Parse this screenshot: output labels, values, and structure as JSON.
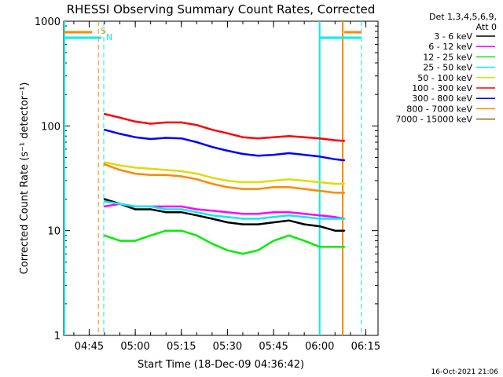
{
  "chart_data": {
    "type": "line",
    "title": "RHESSI Observing Summary Count Rates, Corrected",
    "xlabel": "Start Time (18-Dec-09 04:36:42)",
    "ylabel": "Corrected Count Rate (s⁻¹ detector⁻¹)",
    "y_scale": "log",
    "ylim": [
      1,
      1000
    ],
    "xlim": [
      "04:36:42",
      "06:19:00"
    ],
    "x_ticks": [
      "04:45",
      "05:00",
      "05:15",
      "05:30",
      "05:45",
      "06:00",
      "06:15"
    ],
    "y_ticks": [
      "1",
      "10",
      "100",
      "1000"
    ],
    "legend_title": [
      "Det 1,3,4,5,6,9,",
      "Att 0"
    ],
    "legend_position": "right",
    "timestamp": "16-Oct-2021 21:06",
    "series": [
      {
        "name": "3 - 6 keV",
        "color": "#000000",
        "x": [
          "04:50",
          "04:55",
          "05:00",
          "05:05",
          "05:10",
          "05:15",
          "05:20",
          "05:25",
          "05:30",
          "05:35",
          "05:40",
          "05:45",
          "05:50",
          "05:55",
          "06:00",
          "06:05",
          "06:08"
        ],
        "values": [
          20,
          18,
          16,
          16,
          15,
          15,
          14,
          13,
          12,
          11.5,
          11.5,
          12,
          12.5,
          11.5,
          11,
          10,
          10
        ]
      },
      {
        "name": "6 - 12 keV",
        "color": "#ff00ff",
        "x": [
          "04:50",
          "04:55",
          "05:00",
          "05:05",
          "05:10",
          "05:15",
          "05:20",
          "05:25",
          "05:30",
          "05:35",
          "05:40",
          "05:45",
          "05:50",
          "05:55",
          "06:00",
          "06:05",
          "06:08"
        ],
        "values": [
          17,
          18,
          17,
          17,
          17,
          17,
          16,
          15.5,
          15,
          14.5,
          14.5,
          15,
          15,
          14.5,
          14,
          13.5,
          13
        ]
      },
      {
        "name": "12 - 25 keV",
        "color": "#00ee00",
        "x": [
          "04:50",
          "04:55",
          "05:00",
          "05:05",
          "05:10",
          "05:15",
          "05:20",
          "05:25",
          "05:30",
          "05:35",
          "05:40",
          "05:45",
          "05:50",
          "05:55",
          "06:00",
          "06:05",
          "06:08"
        ],
        "values": [
          9,
          8,
          8,
          9,
          10,
          10,
          9,
          7.5,
          6.5,
          6,
          6.5,
          8,
          9,
          8,
          7,
          7,
          7
        ]
      },
      {
        "name": "25 - 50 keV",
        "color": "#00eeee",
        "x": [
          "04:50",
          "04:55",
          "05:00",
          "05:05",
          "05:10",
          "05:15",
          "05:20",
          "05:25",
          "05:30",
          "05:35",
          "05:40",
          "05:45",
          "05:50",
          "05:55",
          "06:00",
          "06:05",
          "06:08"
        ],
        "values": [
          19,
          18,
          17,
          17,
          16,
          16,
          15,
          14,
          13.5,
          13,
          13,
          13.5,
          14,
          13.5,
          13,
          13,
          13
        ]
      },
      {
        "name": "50 - 100 keV",
        "color": "#dddd00",
        "x": [
          "04:50",
          "04:55",
          "05:00",
          "05:05",
          "05:10",
          "05:15",
          "05:20",
          "05:25",
          "05:30",
          "05:35",
          "05:40",
          "05:45",
          "05:50",
          "05:55",
          "06:00",
          "06:05",
          "06:08"
        ],
        "values": [
          45,
          42,
          40,
          39,
          38,
          37,
          35,
          32,
          30,
          29,
          29,
          30,
          31,
          30,
          29,
          28,
          28
        ]
      },
      {
        "name": "100 - 300 keV",
        "color": "#ff0000",
        "x": [
          "04:50",
          "04:55",
          "05:00",
          "05:05",
          "05:10",
          "05:15",
          "05:20",
          "05:25",
          "05:30",
          "05:35",
          "05:40",
          "05:45",
          "05:50",
          "05:55",
          "06:00",
          "06:05",
          "06:08"
        ],
        "values": [
          130,
          120,
          110,
          105,
          108,
          108,
          102,
          92,
          85,
          78,
          76,
          78,
          80,
          78,
          76,
          73,
          72
        ]
      },
      {
        "name": "300 - 800 keV",
        "color": "#0000ff",
        "x": [
          "04:50",
          "04:55",
          "05:00",
          "05:05",
          "05:10",
          "05:15",
          "05:20",
          "05:25",
          "05:30",
          "05:35",
          "05:40",
          "05:45",
          "05:50",
          "05:55",
          "06:00",
          "06:05",
          "06:08"
        ],
        "values": [
          92,
          84,
          78,
          75,
          77,
          76,
          70,
          63,
          58,
          54,
          52,
          53,
          55,
          53,
          51,
          48,
          47
        ]
      },
      {
        "name": "800 - 7000 keV",
        "color": "#ff8800",
        "x": [
          "04:50",
          "04:55",
          "05:00",
          "05:05",
          "05:10",
          "05:15",
          "05:20",
          "05:25",
          "05:30",
          "05:35",
          "05:40",
          "05:45",
          "05:50",
          "05:55",
          "06:00",
          "06:05",
          "06:08"
        ],
        "values": [
          43,
          38,
          35,
          34,
          34,
          33,
          31,
          28,
          26,
          25,
          25,
          26,
          26,
          25,
          24,
          23,
          23
        ]
      },
      {
        "name": "7000 - 15000 keV",
        "color": "#886600",
        "x": [],
        "values": []
      }
    ],
    "markers": [
      {
        "label": "S",
        "color": "#ff8800",
        "x": "04:48:00"
      },
      {
        "label": "N",
        "color": "#00eeee",
        "x": "04:49:45"
      }
    ]
  }
}
